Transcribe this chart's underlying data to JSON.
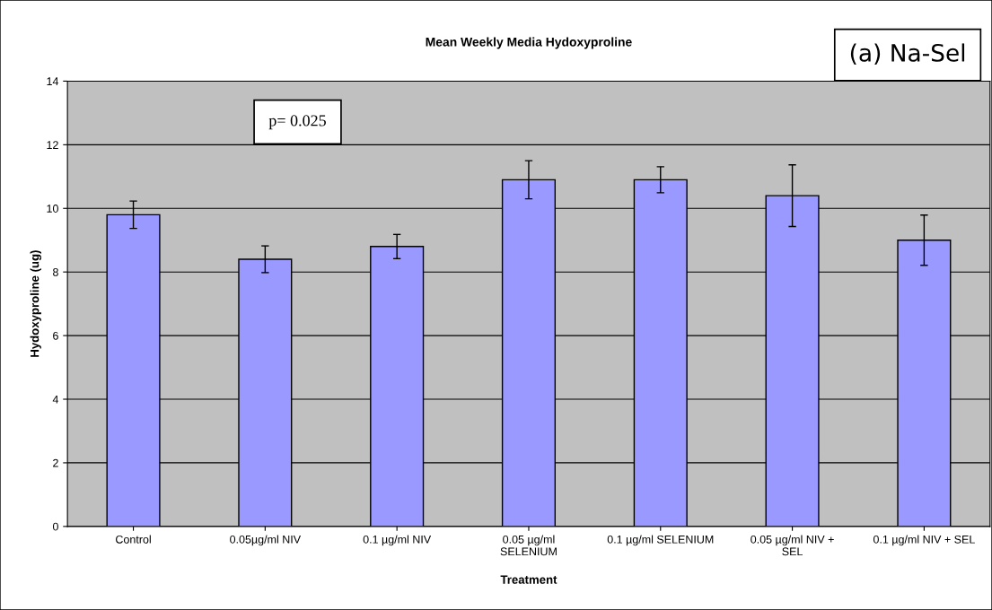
{
  "chart_data": {
    "type": "bar",
    "title": "Mean Weekly Media Hydoxyproline",
    "xlabel": "Treatment",
    "ylabel": "Hydoxyproline (ug)",
    "categories": [
      "Control",
      "0.05µg/ml NIV",
      "0.1 µg/ml NIV",
      "0.05 µg/ml\nSELENIUM",
      "0.1 µg/ml SELENIUM",
      "0.05 µg/ml NIV +\nSEL",
      "0.1 µg/ml NIV + SEL"
    ],
    "values": [
      9.8,
      8.4,
      8.8,
      10.9,
      10.9,
      10.4,
      9.0
    ],
    "errors": [
      0.43,
      0.42,
      0.38,
      0.6,
      0.41,
      0.97,
      0.79
    ],
    "color": "#9999ff",
    "ylim": [
      0,
      14
    ],
    "yticks": [
      0,
      2,
      4,
      6,
      8,
      10,
      12,
      14
    ],
    "grid": "y",
    "annotations": [
      "p= 0.025",
      "(a) Na-Sel"
    ]
  }
}
